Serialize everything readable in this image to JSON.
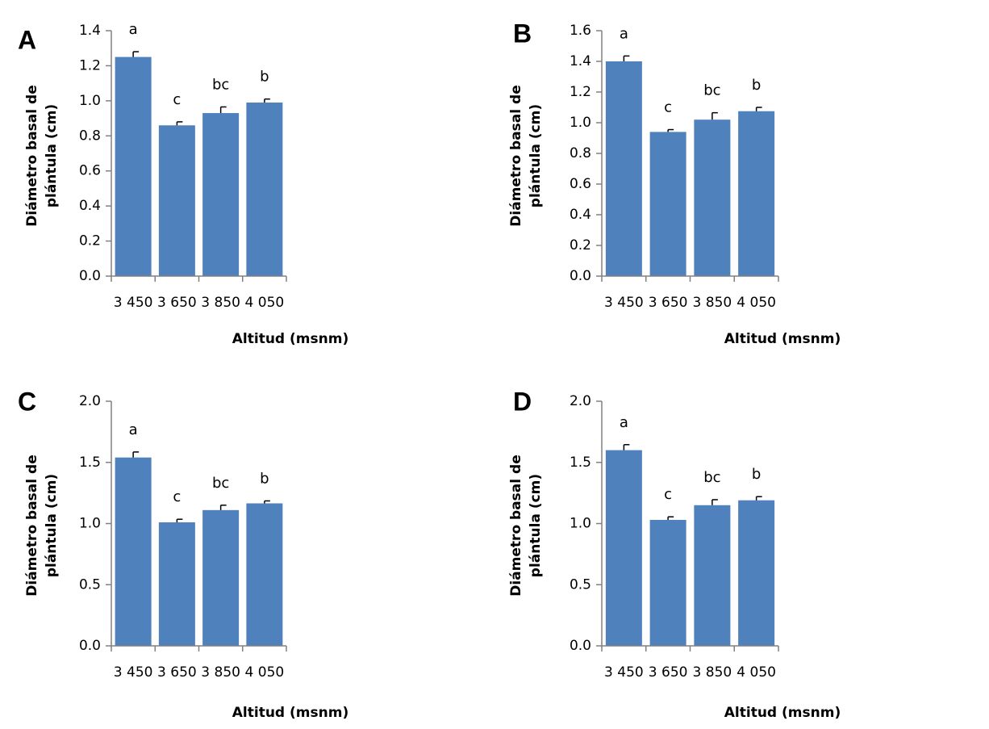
{
  "colors": {
    "bar": "#4f81bd",
    "axis": "#808080",
    "error": "#000000"
  },
  "chart_data": [
    {
      "type": "bar",
      "panel_label": "A",
      "xlabel": "Altitud (msnm)",
      "ylabel_lines": [
        "Diámetro basal de",
        "plántula (cm)"
      ],
      "categories": [
        "3 450",
        "3 650",
        "3 850",
        "4 050"
      ],
      "values": [
        1.25,
        0.86,
        0.93,
        0.99
      ],
      "errors": [
        0.03,
        0.02,
        0.035,
        0.02
      ],
      "significance": [
        "a",
        "c",
        "bc",
        "b"
      ],
      "ylim": [
        0,
        1.4
      ],
      "yticks": [
        "0.0",
        "0.2",
        "0.4",
        "0.6",
        "0.8",
        "1.0",
        "1.2",
        "1.4"
      ],
      "grid": false
    },
    {
      "type": "bar",
      "panel_label": "B",
      "xlabel": "Altitud (msnm)",
      "ylabel_lines": [
        "Diámetro basal de",
        "plántula (cm)"
      ],
      "categories": [
        "3 450",
        "3 650",
        "3 850",
        "4 050"
      ],
      "values": [
        1.4,
        0.94,
        1.02,
        1.075
      ],
      "errors": [
        0.035,
        0.015,
        0.045,
        0.025
      ],
      "significance": [
        "a",
        "c",
        "bc",
        "b"
      ],
      "ylim": [
        0,
        1.6
      ],
      "yticks": [
        "0.0",
        "0.2",
        "0.4",
        "0.6",
        "0.8",
        "1.0",
        "1.2",
        "1.4",
        "1.6"
      ],
      "grid": false
    },
    {
      "type": "bar",
      "panel_label": "C",
      "xlabel": "Altitud (msnm)",
      "ylabel_lines": [
        "Diámetro basal de",
        "plántula (cm)"
      ],
      "categories": [
        "3 450",
        "3 650",
        "3 850",
        "4 050"
      ],
      "values": [
        1.54,
        1.01,
        1.11,
        1.165
      ],
      "errors": [
        0.045,
        0.025,
        0.04,
        0.02
      ],
      "significance": [
        "a",
        "c",
        "bc",
        "b"
      ],
      "ylim": [
        0,
        2.0
      ],
      "yticks": [
        "0.0",
        "0.5",
        "1.0",
        "1.5",
        "2.0"
      ],
      "grid": false
    },
    {
      "type": "bar",
      "panel_label": "D",
      "xlabel": "Altitud (msnm)",
      "ylabel_lines": [
        "Diámetro basal de",
        "plántula (cm)"
      ],
      "categories": [
        "3 450",
        "3 650",
        "3 850",
        "4 050"
      ],
      "values": [
        1.6,
        1.03,
        1.15,
        1.19
      ],
      "errors": [
        0.045,
        0.025,
        0.045,
        0.03
      ],
      "significance": [
        "a",
        "c",
        "bc",
        "b"
      ],
      "ylim": [
        0,
        2.0
      ],
      "yticks": [
        "0.0",
        "0.5",
        "1.0",
        "1.5",
        "2.0"
      ],
      "grid": false
    }
  ]
}
